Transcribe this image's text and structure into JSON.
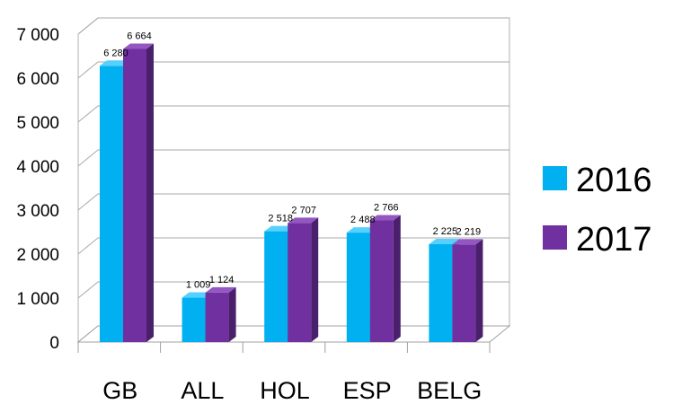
{
  "chart_data": {
    "type": "bar",
    "title": "",
    "xlabel": "",
    "ylabel": "",
    "categories": [
      "GB",
      "ALL",
      "HOL",
      "ESP",
      "BELG"
    ],
    "series": [
      {
        "name": "2016",
        "color": "#00B0F0",
        "side_color": "#0086B8",
        "top_color": "#55D0FF",
        "values": [
          6280,
          1009,
          2518,
          2488,
          2225
        ],
        "labels": [
          "6 280",
          "1 009",
          "2 518",
          "2 488",
          "2 225"
        ]
      },
      {
        "name": "2017",
        "color": "#7030A0",
        "side_color": "#4A1F6B",
        "top_color": "#9457C2",
        "values": [
          6664,
          1124,
          2707,
          2766,
          2219
        ],
        "labels": [
          "6 664",
          "1 124",
          "2 707",
          "2 766",
          "2 219"
        ]
      }
    ],
    "ylim": [
      0,
      7000
    ],
    "yticks": [
      0,
      1000,
      2000,
      3000,
      4000,
      5000,
      6000,
      7000
    ],
    "ytick_labels": [
      "0",
      "1 000",
      "2 000",
      "3 000",
      "4 000",
      "5 000",
      "6 000",
      "7 000"
    ],
    "grid": true,
    "legend_position": "right",
    "style": "3d-clustered-column"
  }
}
